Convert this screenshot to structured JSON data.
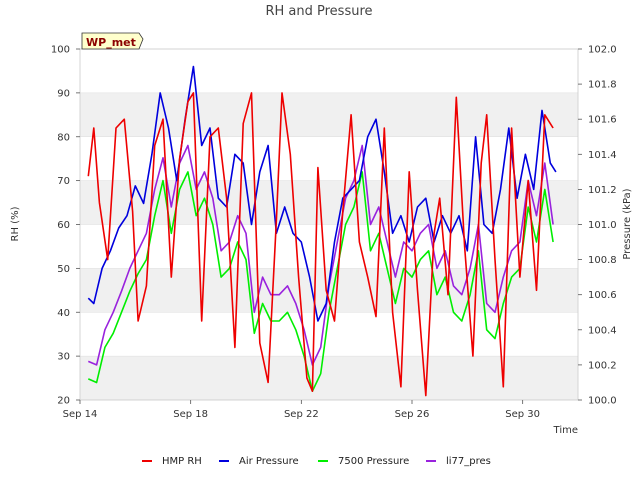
{
  "chart_data": {
    "type": "line",
    "title": "RH and Pressure",
    "badge": "WP_met",
    "xlabel": "Time",
    "ylabel": "RH (%)",
    "y2label": "Pressure (kPa)",
    "x_ticks": [
      "Sep 14",
      "Sep 18",
      "Sep 22",
      "Sep 26",
      "Sep 30"
    ],
    "x_tick_days": [
      14,
      18,
      22,
      26,
      30
    ],
    "xlim_days": [
      14,
      32
    ],
    "ylim": [
      20,
      100
    ],
    "y_ticks": [
      20,
      30,
      40,
      50,
      60,
      70,
      80,
      90,
      100
    ],
    "y2lim": [
      100.0,
      102.0
    ],
    "y2_ticks": [
      "100.0",
      "100.2",
      "100.4",
      "100.6",
      "100.8",
      "101.0",
      "101.2",
      "101.4",
      "101.6",
      "101.8",
      "102.0"
    ],
    "y2_tick_values": [
      100.0,
      100.2,
      100.4,
      100.6,
      100.8,
      101.0,
      101.2,
      101.4,
      101.6,
      101.8,
      102.0
    ],
    "grid": "horizontal bands",
    "legend_position": "bottom",
    "series": [
      {
        "name": "HMP RH",
        "axis": "left",
        "color": "#ee0000",
        "x": [
          14.3,
          14.5,
          14.7,
          15.0,
          15.3,
          15.6,
          15.9,
          16.1,
          16.4,
          16.7,
          17.0,
          17.3,
          17.6,
          17.9,
          18.1,
          18.4,
          18.7,
          19.0,
          19.3,
          19.6,
          19.9,
          20.2,
          20.5,
          20.8,
          21.1,
          21.3,
          21.6,
          21.9,
          22.2,
          22.4,
          22.6,
          22.9,
          23.2,
          23.5,
          23.8,
          24.1,
          24.4,
          24.7,
          25.0,
          25.3,
          25.6,
          25.9,
          26.2,
          26.5,
          26.8,
          27.0,
          27.3,
          27.6,
          27.9,
          28.2,
          28.5,
          28.7,
          29.0,
          29.3,
          29.6,
          29.9,
          30.2,
          30.5,
          30.8,
          31.1
        ],
        "y": [
          71,
          82,
          65,
          52,
          82,
          84,
          63,
          38,
          46,
          78,
          84,
          48,
          75,
          88,
          90,
          38,
          80,
          82,
          66,
          32,
          83,
          90,
          33,
          24,
          61,
          90,
          76,
          48,
          25,
          22,
          73,
          45,
          38,
          63,
          85,
          56,
          48,
          39,
          82,
          40,
          23,
          72,
          45,
          21,
          58,
          66,
          44,
          89,
          55,
          30,
          74,
          85,
          52,
          23,
          82,
          48,
          70,
          45,
          85,
          82
        ]
      },
      {
        "name": "Air Pressure",
        "axis": "right",
        "color": "#0000dd",
        "x": [
          14.3,
          14.5,
          14.8,
          15.1,
          15.4,
          15.7,
          16.0,
          16.3,
          16.6,
          16.9,
          17.2,
          17.5,
          17.8,
          18.1,
          18.4,
          18.7,
          19.0,
          19.3,
          19.6,
          19.9,
          20.2,
          20.5,
          20.8,
          21.1,
          21.4,
          21.7,
          22.0,
          22.3,
          22.6,
          22.9,
          23.2,
          23.5,
          23.8,
          24.1,
          24.4,
          24.7,
          25.0,
          25.3,
          25.6,
          25.9,
          26.2,
          26.5,
          26.8,
          27.1,
          27.4,
          27.7,
          28.0,
          28.3,
          28.6,
          28.9,
          29.2,
          29.5,
          29.8,
          30.1,
          30.4,
          30.7,
          31.0,
          31.2
        ],
        "y": [
          100.58,
          100.55,
          100.75,
          100.85,
          100.98,
          101.05,
          101.22,
          101.12,
          101.4,
          101.75,
          101.55,
          101.25,
          101.6,
          101.9,
          101.45,
          101.55,
          101.15,
          101.1,
          101.4,
          101.35,
          101.0,
          101.3,
          101.45,
          100.95,
          101.1,
          100.95,
          100.9,
          100.7,
          100.45,
          100.55,
          100.9,
          101.15,
          101.2,
          101.25,
          101.5,
          101.6,
          101.3,
          100.95,
          101.05,
          100.9,
          101.1,
          101.15,
          100.9,
          101.05,
          100.95,
          101.05,
          100.85,
          101.5,
          101.0,
          100.95,
          101.2,
          101.55,
          101.15,
          101.4,
          101.2,
          101.65,
          101.35,
          101.3
        ]
      },
      {
        "name": "7500 Pressure",
        "axis": "right",
        "color": "#00ee00",
        "x": [
          14.3,
          14.6,
          14.9,
          15.2,
          15.5,
          15.8,
          16.1,
          16.4,
          16.7,
          17.0,
          17.3,
          17.6,
          17.9,
          18.2,
          18.5,
          18.8,
          19.1,
          19.4,
          19.7,
          20.0,
          20.3,
          20.6,
          20.9,
          21.2,
          21.5,
          21.8,
          22.1,
          22.4,
          22.7,
          23.0,
          23.3,
          23.6,
          23.9,
          24.2,
          24.5,
          24.8,
          25.1,
          25.4,
          25.7,
          26.0,
          26.3,
          26.6,
          26.9,
          27.2,
          27.5,
          27.8,
          28.1,
          28.4,
          28.7,
          29.0,
          29.3,
          29.6,
          29.9,
          30.2,
          30.5,
          30.8,
          31.1
        ],
        "y": [
          100.12,
          100.1,
          100.3,
          100.38,
          100.5,
          100.62,
          100.72,
          100.8,
          101.05,
          101.25,
          100.95,
          101.2,
          101.3,
          101.05,
          101.15,
          101.0,
          100.7,
          100.75,
          100.9,
          100.8,
          100.38,
          100.55,
          100.45,
          100.45,
          100.5,
          100.4,
          100.25,
          100.05,
          100.15,
          100.5,
          100.75,
          101.0,
          101.1,
          101.3,
          100.85,
          100.95,
          100.75,
          100.55,
          100.75,
          100.7,
          100.8,
          100.85,
          100.6,
          100.7,
          100.5,
          100.45,
          100.6,
          100.85,
          100.4,
          100.35,
          100.55,
          100.7,
          100.75,
          101.1,
          100.9,
          101.2,
          100.9
        ]
      },
      {
        "name": "li77_pres",
        "axis": "right",
        "color": "#9922dd",
        "x": [
          14.3,
          14.6,
          14.9,
          15.2,
          15.5,
          15.8,
          16.1,
          16.4,
          16.7,
          17.0,
          17.3,
          17.6,
          17.9,
          18.2,
          18.5,
          18.8,
          19.1,
          19.4,
          19.7,
          20.0,
          20.3,
          20.6,
          20.9,
          21.2,
          21.5,
          21.8,
          22.1,
          22.4,
          22.7,
          23.0,
          23.3,
          23.6,
          23.9,
          24.2,
          24.5,
          24.8,
          25.1,
          25.4,
          25.7,
          26.0,
          26.3,
          26.6,
          26.9,
          27.2,
          27.5,
          27.8,
          28.1,
          28.4,
          28.7,
          29.0,
          29.3,
          29.6,
          29.9,
          30.2,
          30.5,
          30.8,
          31.1
        ],
        "y": [
          100.22,
          100.2,
          100.4,
          100.5,
          100.62,
          100.75,
          100.85,
          100.95,
          101.2,
          101.38,
          101.1,
          101.35,
          101.45,
          101.2,
          101.3,
          101.15,
          100.85,
          100.9,
          101.05,
          100.95,
          100.5,
          100.7,
          100.6,
          100.6,
          100.65,
          100.55,
          100.4,
          100.2,
          100.3,
          100.65,
          100.9,
          101.15,
          101.25,
          101.45,
          101.0,
          101.1,
          100.9,
          100.7,
          100.9,
          100.85,
          100.95,
          101.0,
          100.75,
          100.85,
          100.65,
          100.6,
          100.75,
          101.0,
          100.55,
          100.5,
          100.7,
          100.85,
          100.9,
          101.25,
          101.05,
          101.35,
          101.0
        ]
      }
    ]
  }
}
